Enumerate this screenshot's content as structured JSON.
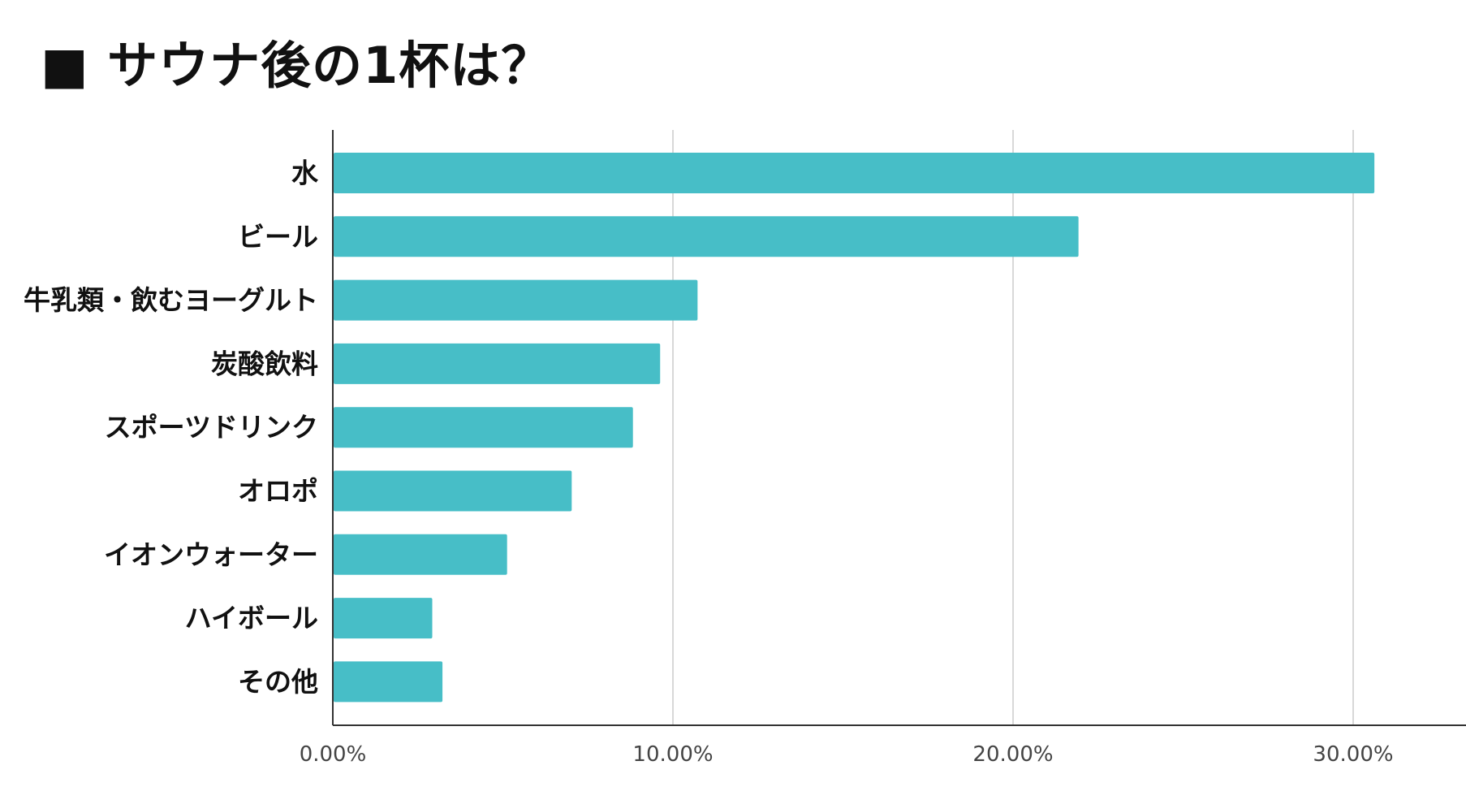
{
  "title": "■ サウナ後の1杯は？",
  "colors": {
    "bar": "#47bec7",
    "grid": "#cccccc",
    "axis": "#333333"
  },
  "chart_data": {
    "type": "bar",
    "orientation": "horizontal",
    "categories": [
      "水",
      "ビール",
      "牛乳類・飲むヨーグルト",
      "炭酸飲料",
      "スポーツドリンク",
      "オロポ",
      "イオンウォーター",
      "ハイボール",
      "その他"
    ],
    "values": [
      30.6,
      21.9,
      10.7,
      9.6,
      8.8,
      7.0,
      5.1,
      2.9,
      3.2
    ],
    "xlim": [
      0,
      33
    ],
    "xticks": [
      0,
      10,
      20,
      30
    ],
    "xtick_labels": [
      "0.00%",
      "10.00%",
      "20.00%",
      "30.00%"
    ],
    "xlabel": "",
    "ylabel": "",
    "grid": true,
    "legend": "none"
  }
}
